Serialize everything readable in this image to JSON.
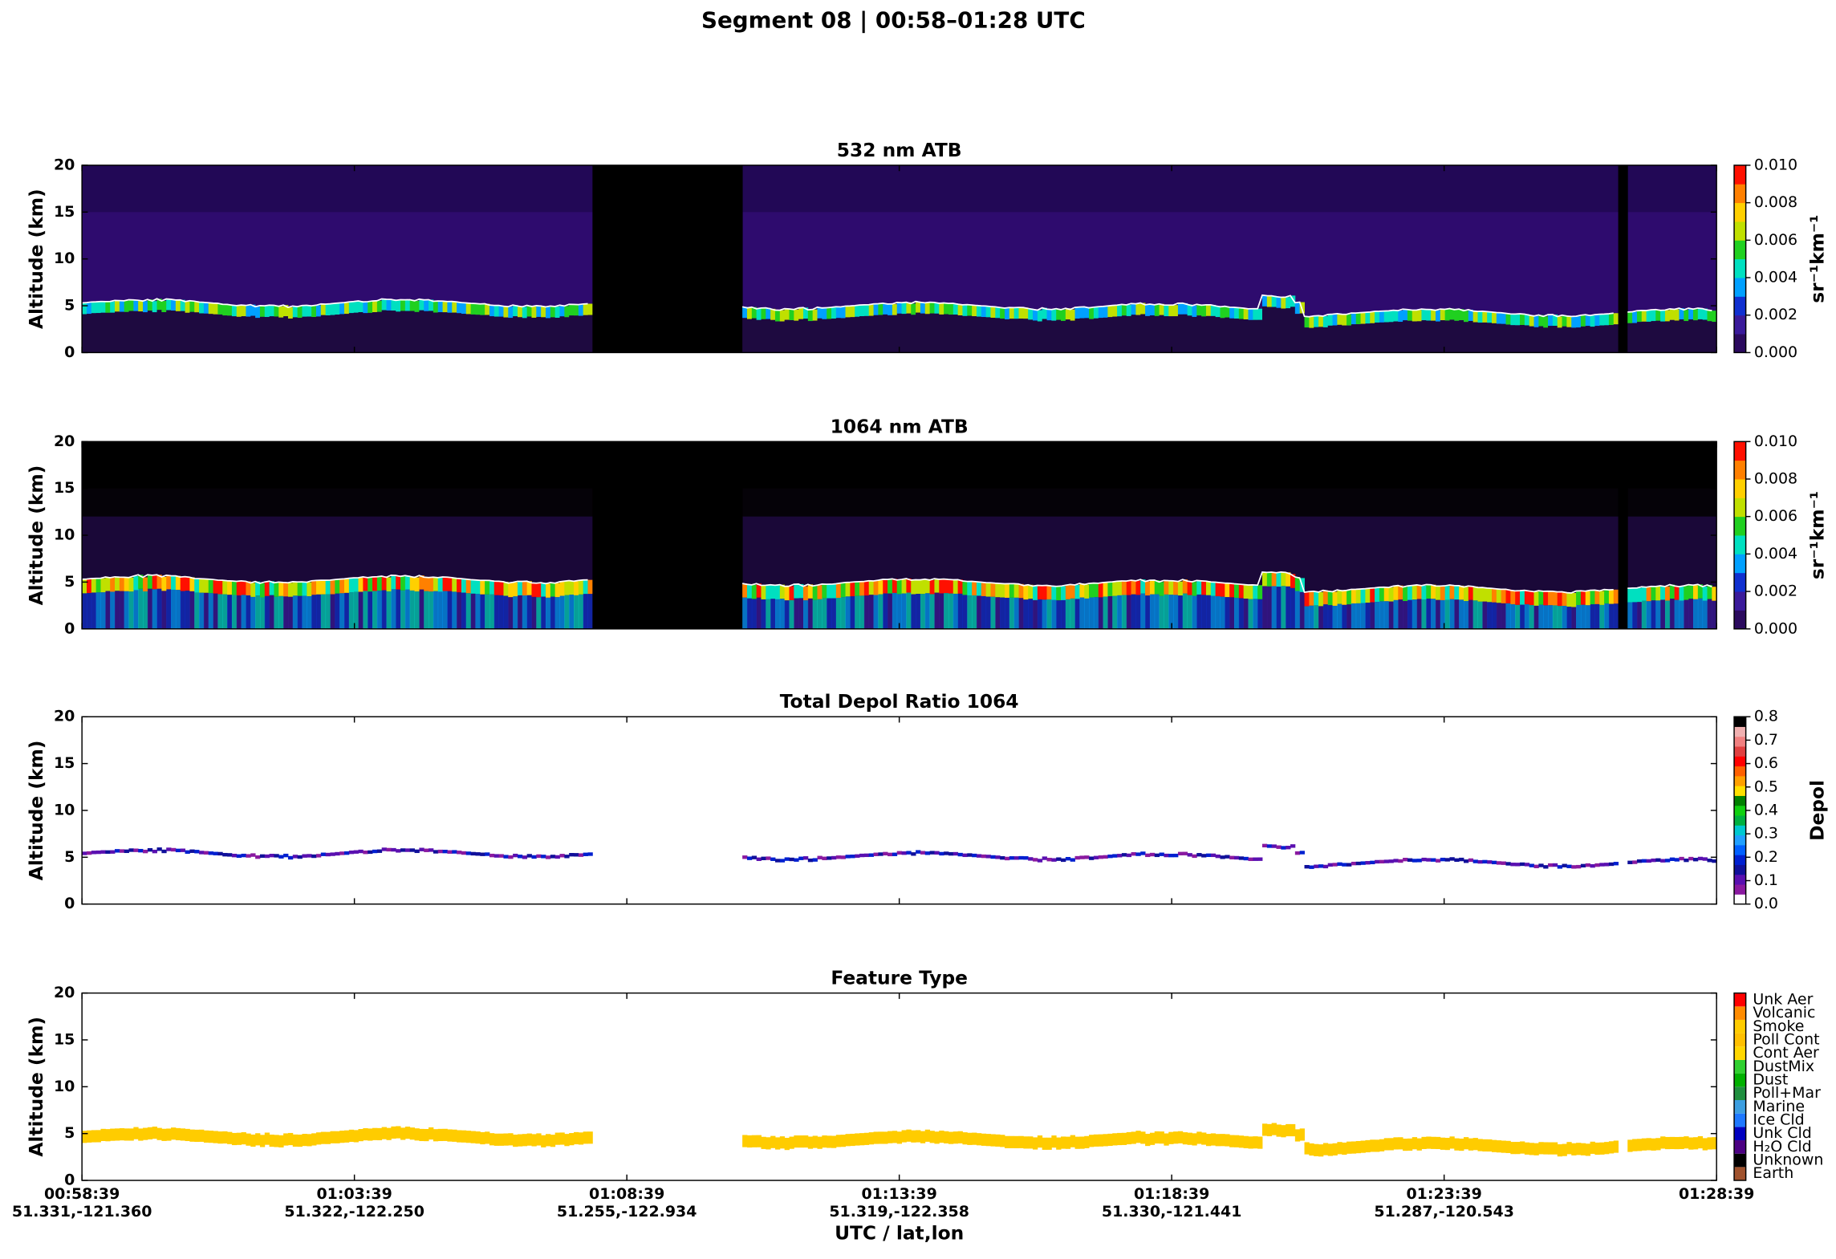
{
  "title": "Segment 08  |  00:58–01:28 UTC",
  "chart_data": [
    {
      "type": "heatmap",
      "title": "532 nm ATB",
      "ylabel": "Altitude (km)",
      "ylim": [
        0,
        20
      ],
      "yticks": [
        0,
        5,
        10,
        15,
        20
      ],
      "colorbar": {
        "label": "sr⁻¹km⁻¹",
        "lim": [
          0,
          0.01
        ],
        "ticks": [
          {
            "value": 0,
            "label": "0.000"
          },
          {
            "value": 0.002,
            "label": "0.002"
          },
          {
            "value": 0.004,
            "label": "0.004"
          },
          {
            "value": 0.006,
            "label": "0.006"
          },
          {
            "value": 0.008,
            "label": "0.008"
          },
          {
            "value": 0.01,
            "label": "0.010"
          }
        ],
        "colors": [
          "#2b0a5e",
          "#3a1a9a",
          "#1030d0",
          "#00a0ff",
          "#00e0c0",
          "#20d020",
          "#c0e000",
          "#ffd000",
          "#ff8000",
          "#ff1000"
        ]
      }
    },
    {
      "type": "heatmap",
      "title": "1064 nm ATB",
      "ylabel": "Altitude (km)",
      "ylim": [
        0,
        20
      ],
      "yticks": [
        0,
        5,
        10,
        15,
        20
      ],
      "colorbar": {
        "label": "sr⁻¹km⁻¹",
        "lim": [
          0,
          0.01
        ],
        "ticks": [
          {
            "value": 0,
            "label": "0.000"
          },
          {
            "value": 0.002,
            "label": "0.002"
          },
          {
            "value": 0.004,
            "label": "0.004"
          },
          {
            "value": 0.006,
            "label": "0.006"
          },
          {
            "value": 0.008,
            "label": "0.008"
          },
          {
            "value": 0.01,
            "label": "0.010"
          }
        ],
        "colors": [
          "#2b0a5e",
          "#3a1a9a",
          "#1030d0",
          "#00a0ff",
          "#00e0c0",
          "#20d020",
          "#c0e000",
          "#ffd000",
          "#ff8000",
          "#ff1000"
        ]
      }
    },
    {
      "type": "heatmap",
      "title": "Total Depol Ratio 1064",
      "ylabel": "Altitude (km)",
      "ylim": [
        0,
        20
      ],
      "yticks": [
        0,
        5,
        10,
        15,
        20
      ],
      "colorbar": {
        "label": "Depol",
        "lim": [
          0,
          0.8
        ],
        "ticks": [
          {
            "value": 0,
            "label": "0.0"
          },
          0.1,
          0.2,
          0.3,
          0.4,
          0.5,
          0.6,
          0.7,
          0.8
        ],
        "colors": [
          "#ffffff",
          "#8a1aa0",
          "#5a10b0",
          "#10109a",
          "#0020d0",
          "#0060ff",
          "#20a0ff",
          "#00c8d0",
          "#00b040",
          "#10d010",
          "#008000",
          "#ffe000",
          "#ffa000",
          "#ff6000",
          "#ff0000",
          "#e04040",
          "#f08080",
          "#f0b0b0",
          "#000000"
        ]
      }
    },
    {
      "type": "heatmap",
      "title": "Feature Type",
      "ylabel": "Altitude (km)",
      "ylim": [
        0,
        20
      ],
      "yticks": [
        0,
        5,
        10,
        15,
        20
      ],
      "xlabel": "UTC / lat,lon",
      "xlim": [
        "00:58:39",
        "01:28:39"
      ],
      "xticks": [
        {
          "value": "00:58:39",
          "label": "51.331,-121.360"
        },
        {
          "value": "01:03:39",
          "label": "51.322,-122.250"
        },
        {
          "value": "01:08:39",
          "label": "51.255,-122.934"
        },
        {
          "value": "01:13:39",
          "label": "51.319,-122.358"
        },
        {
          "value": "01:18:39",
          "label": "51.330,-121.441"
        },
        {
          "value": "01:23:39",
          "label": "51.287,-120.543"
        },
        {
          "value": "01:28:39",
          "label": ""
        }
      ],
      "colorbar": {
        "categories": [
          "Earth",
          "Unknown",
          "H₂O Cld",
          "Unk Cld",
          "Ice Cld",
          "Marine",
          "Poll+Mar",
          "Dust",
          "DustMix",
          "Cont Aer",
          "Poll Cont",
          "Smoke",
          "Volcanic",
          "Unk Aer"
        ],
        "colors": [
          "#a0522d",
          "#000000",
          "#4b0082",
          "#0000c0",
          "#1e78ff",
          "#3c9ee0",
          "#1f8f3f",
          "#00b000",
          "#30d030",
          "#ffd700",
          "#ffc000",
          "#ffcc00",
          "#ff8c00",
          "#ff0000"
        ]
      }
    }
  ]
}
